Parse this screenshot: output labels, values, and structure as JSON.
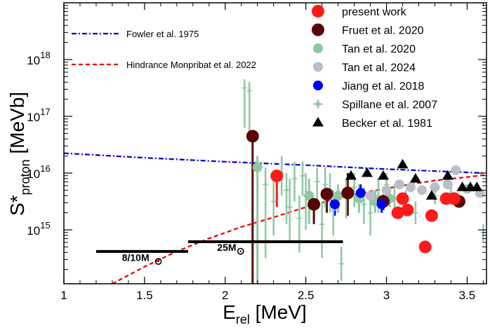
{
  "chart_data": {
    "type": "scatter",
    "xlabel": "E",
    "xlabel_sub": "rel",
    "xlabel_unit": " [MeV]",
    "ylabel": "S*",
    "ylabel_sub": "proton",
    "ylabel_unit": " [MeVb]",
    "xlim": [
      1.0,
      3.62
    ],
    "ylim_log10": [
      14.05,
      19.0
    ],
    "x_ticks": [
      {
        "v": 1,
        "label": "1"
      },
      {
        "v": 1.5,
        "label": "1.5"
      },
      {
        "v": 2,
        "label": "2"
      },
      {
        "v": 2.5,
        "label": "2.5"
      },
      {
        "v": 3,
        "label": "3"
      },
      {
        "v": 3.5,
        "label": "3.5"
      }
    ],
    "y_ticks": [
      {
        "exp": 15,
        "base": "10",
        "sup": "15"
      },
      {
        "exp": 16,
        "base": "10",
        "sup": "16"
      },
      {
        "exp": 17,
        "base": "10",
        "sup": "17"
      },
      {
        "exp": 18,
        "base": "10",
        "sup": "18"
      }
    ],
    "curves": [
      {
        "name": "Fowler et al. 1975",
        "color": "#0000cc",
        "style": "dashdot",
        "points": [
          [
            1.0,
            16.35
          ],
          [
            1.5,
            16.27
          ],
          [
            2.0,
            16.2
          ],
          [
            2.5,
            16.14
          ],
          [
            3.0,
            16.07
          ],
          [
            3.6,
            16.0
          ]
        ]
      },
      {
        "name": "Hindrance Monpribat et al. 2022",
        "color": "#e60000",
        "style": "dashed",
        "points": [
          [
            1.3,
            14.05
          ],
          [
            1.5,
            14.35
          ],
          [
            1.7,
            14.62
          ],
          [
            1.9,
            14.85
          ],
          [
            2.1,
            15.05
          ],
          [
            2.3,
            15.22
          ],
          [
            2.5,
            15.4
          ],
          [
            2.7,
            15.56
          ],
          [
            2.9,
            15.68
          ],
          [
            3.1,
            15.78
          ],
          [
            3.3,
            15.87
          ],
          [
            3.5,
            15.93
          ],
          [
            3.62,
            15.97
          ]
        ]
      }
    ],
    "series": [
      {
        "name": "present work",
        "marker": "circle",
        "size": 9,
        "color": "#ff1a1a",
        "points": [
          {
            "x": 2.32,
            "y": 15.95,
            "lo": 15.4,
            "hi": 16.05
          },
          {
            "x": 3.07,
            "y": 15.3,
            "lo": 15.25,
            "hi": 15.35
          },
          {
            "x": 3.1,
            "y": 15.55,
            "lo": 15.48,
            "hi": 15.62
          },
          {
            "x": 3.13,
            "y": 15.35,
            "lo": 15.3,
            "hi": 15.4
          },
          {
            "x": 3.24,
            "y": 14.7,
            "lo": 14.65,
            "hi": 14.75
          },
          {
            "x": 3.28,
            "y": 15.25,
            "lo": 15.2,
            "hi": 15.3
          },
          {
            "x": 3.37,
            "y": 15.55,
            "lo": 15.52,
            "hi": 15.58
          },
          {
            "x": 3.42,
            "y": 15.55,
            "lo": 15.52,
            "hi": 15.58
          }
        ]
      },
      {
        "name": "Fruet et al. 2020",
        "marker": "circle",
        "size": 9,
        "color": "#5a0505",
        "points": [
          {
            "x": 2.17,
            "y": 16.65,
            "lo": 14.05,
            "hi": 16.7
          },
          {
            "x": 2.55,
            "y": 15.45,
            "lo": 15.1,
            "hi": 15.5
          },
          {
            "x": 2.63,
            "y": 15.63,
            "lo": 15.3,
            "hi": 15.7
          },
          {
            "x": 2.76,
            "y": 15.65,
            "lo": 15.25,
            "hi": 16.0
          },
          {
            "x": 2.98,
            "y": 15.5,
            "lo": 15.35,
            "hi": 15.62
          },
          {
            "x": 3.45,
            "y": 15.5,
            "lo": 15.45,
            "hi": 15.55
          }
        ]
      },
      {
        "name": "Tan et al. 2020",
        "marker": "circle",
        "size": 7,
        "color": "#8fc7a5",
        "points": [
          {
            "x": 2.2,
            "y": 16.1,
            "lo": 14.05,
            "hi": 16.3
          },
          {
            "x": 2.52,
            "y": 15.6,
            "lo": 15.1,
            "hi": 15.9
          },
          {
            "x": 2.7,
            "y": 15.6,
            "lo": 15.3,
            "hi": 15.8
          },
          {
            "x": 2.83,
            "y": 15.55,
            "lo": 15.3,
            "hi": 15.8
          },
          {
            "x": 2.93,
            "y": 15.5,
            "lo": 15.3,
            "hi": 15.7
          },
          {
            "x": 3.02,
            "y": 15.55,
            "lo": 15.4,
            "hi": 15.7
          }
        ]
      },
      {
        "name": "Tan et al. 2024",
        "marker": "circle",
        "size": 7,
        "color": "#b7bfca",
        "points": [
          {
            "x": 2.9,
            "y": 15.6
          },
          {
            "x": 3.0,
            "y": 15.7
          },
          {
            "x": 3.08,
            "y": 15.8
          },
          {
            "x": 3.15,
            "y": 15.75
          },
          {
            "x": 3.22,
            "y": 15.7
          },
          {
            "x": 3.3,
            "y": 15.75
          },
          {
            "x": 3.38,
            "y": 15.8
          },
          {
            "x": 3.43,
            "y": 16.05
          },
          {
            "x": 3.5,
            "y": 15.72
          },
          {
            "x": 3.58,
            "y": 15.65
          }
        ]
      },
      {
        "name": "Jiang et al. 2018",
        "marker": "circle",
        "size": 7,
        "color": "#0000ff",
        "points": [
          {
            "x": 2.68,
            "y": 15.45,
            "lo": 15.25,
            "hi": 15.6
          },
          {
            "x": 2.84,
            "y": 15.65,
            "lo": 15.5,
            "hi": 15.8
          },
          {
            "x": 2.97,
            "y": 15.45,
            "lo": 15.3,
            "hi": 15.6
          }
        ]
      },
      {
        "name": "Spillane et al. 2007",
        "marker": "star",
        "size": 5,
        "color": "#8fc7a5",
        "points": [
          {
            "x": 2.12,
            "y": 17.5,
            "lo": 16.8,
            "hi": 17.65
          },
          {
            "x": 2.15,
            "y": 17.45,
            "lo": 16.6,
            "hi": 17.6
          },
          {
            "x": 2.25,
            "y": 15.8,
            "lo": 14.5,
            "hi": 16.1
          },
          {
            "x": 2.3,
            "y": 15.5,
            "lo": 14.9,
            "hi": 15.9
          },
          {
            "x": 2.35,
            "y": 16.0,
            "lo": 15.6,
            "hi": 16.3
          },
          {
            "x": 2.38,
            "y": 15.7,
            "lo": 15.1,
            "hi": 16.0
          },
          {
            "x": 2.4,
            "y": 15.4,
            "lo": 14.8,
            "hi": 15.9
          },
          {
            "x": 2.43,
            "y": 15.9,
            "lo": 15.5,
            "hi": 16.2
          },
          {
            "x": 2.46,
            "y": 15.2,
            "lo": 14.6,
            "hi": 15.6
          },
          {
            "x": 2.48,
            "y": 15.95,
            "lo": 15.6,
            "hi": 16.2
          },
          {
            "x": 2.5,
            "y": 15.6,
            "lo": 15.0,
            "hi": 16.0
          },
          {
            "x": 2.57,
            "y": 15.85,
            "lo": 15.5,
            "hi": 16.1
          },
          {
            "x": 2.6,
            "y": 15.1,
            "lo": 14.5,
            "hi": 15.5
          },
          {
            "x": 2.62,
            "y": 15.8,
            "lo": 15.4,
            "hi": 16.1
          },
          {
            "x": 2.65,
            "y": 15.7,
            "lo": 15.3,
            "hi": 16.0
          },
          {
            "x": 2.67,
            "y": 15.35,
            "lo": 14.9,
            "hi": 15.7
          },
          {
            "x": 2.72,
            "y": 14.4,
            "lo": 14.1,
            "hi": 14.7
          },
          {
            "x": 2.75,
            "y": 15.6,
            "lo": 15.2,
            "hi": 15.9
          },
          {
            "x": 2.8,
            "y": 15.75,
            "lo": 15.4,
            "hi": 16.0
          },
          {
            "x": 2.86,
            "y": 15.45,
            "lo": 15.1,
            "hi": 15.75
          },
          {
            "x": 2.9,
            "y": 15.3,
            "lo": 14.9,
            "hi": 15.6
          },
          {
            "x": 2.95,
            "y": 15.6,
            "lo": 15.3,
            "hi": 15.9
          },
          {
            "x": 3.0,
            "y": 15.8,
            "lo": 15.5,
            "hi": 16.0
          },
          {
            "x": 3.05,
            "y": 15.55,
            "lo": 15.3,
            "hi": 15.8
          },
          {
            "x": 3.12,
            "y": 15.5,
            "lo": 15.3,
            "hi": 15.7
          },
          {
            "x": 3.18,
            "y": 15.3,
            "lo": 15.1,
            "hi": 15.5
          },
          {
            "x": 3.3,
            "y": 15.6,
            "lo": 15.45,
            "hi": 15.75
          },
          {
            "x": 3.4,
            "y": 15.65,
            "lo": 15.5,
            "hi": 15.8
          },
          {
            "x": 3.6,
            "y": 14.95,
            "lo": 14.8,
            "hi": 15.1
          }
        ]
      },
      {
        "name": "Becker et al. 1981",
        "marker": "triangle",
        "size": 8,
        "color": "#000000",
        "points": [
          {
            "x": 2.78,
            "y": 15.95
          },
          {
            "x": 2.88,
            "y": 16.0
          },
          {
            "x": 2.98,
            "y": 15.95
          },
          {
            "x": 3.1,
            "y": 16.15
          },
          {
            "x": 3.18,
            "y": 15.9
          },
          {
            "x": 3.28,
            "y": 15.6
          },
          {
            "x": 3.38,
            "y": 15.95
          },
          {
            "x": 3.47,
            "y": 15.75
          },
          {
            "x": 3.52,
            "y": 15.75
          },
          {
            "x": 3.56,
            "y": 15.75
          }
        ]
      }
    ],
    "annotations": [
      {
        "id": "ann-8-10",
        "label": "8/10M",
        "symbol": "⊙",
        "x0": 1.2,
        "x1": 1.77,
        "y": 14.62,
        "tx": 1.36,
        "ty": 14.45
      },
      {
        "id": "ann-25",
        "label": "25M",
        "symbol": "⊙",
        "x0": 1.77,
        "x1": 2.73,
        "y": 14.79,
        "tx": 1.95,
        "ty": 14.63
      }
    ],
    "legend": {
      "placement": "top-right",
      "entries": [
        "present work",
        "Fruet et al. 2020",
        "Tan et al. 2020",
        "Tan et al. 2024",
        "Jiang et al. 2018",
        "Spillane et al. 2007",
        "Becker et al. 1981"
      ]
    },
    "line_legend": {
      "placement": "top-left",
      "entries": [
        "Fowler et al. 1975",
        "Hindrance Monpribat et al. 2022"
      ]
    }
  }
}
